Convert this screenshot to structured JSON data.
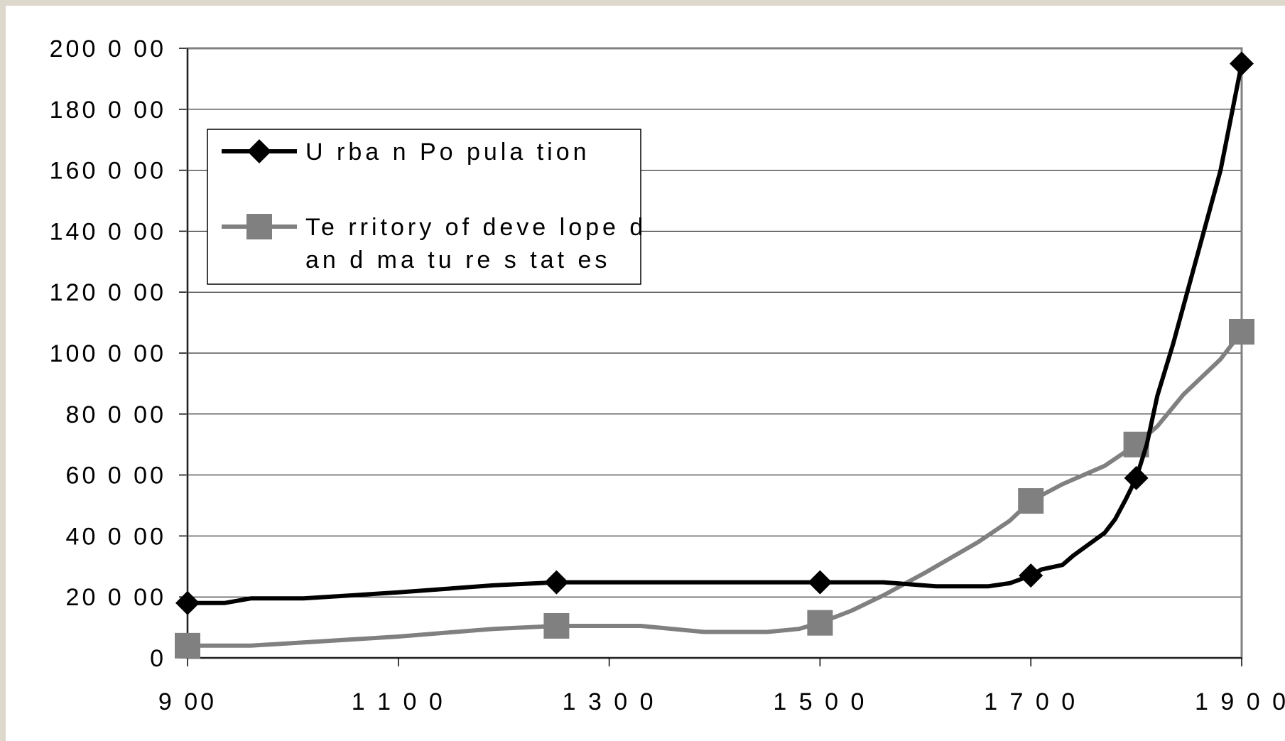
{
  "chart_data": {
    "type": "line",
    "title": "",
    "xlabel": "",
    "ylabel": "",
    "xlim": [
      900,
      1900
    ],
    "ylim": [
      0,
      200000
    ],
    "x_ticks": [
      900,
      1100,
      1300,
      1500,
      1700,
      1900
    ],
    "x_tick_labels": [
      "9 00",
      "1 1 0 0",
      "1 3 0 0",
      "1 5 0 0",
      "1 7 0 0",
      "1 9 0 0"
    ],
    "y_ticks": [
      0,
      20000,
      40000,
      60000,
      80000,
      100000,
      120000,
      140000,
      160000,
      180000,
      200000
    ],
    "y_tick_labels": [
      "0",
      "20  0 00",
      "40  0 00",
      "60  0 00",
      "80  0 00",
      "100  0 00",
      "120  0 00",
      "140  0 00",
      "160  0 00",
      "180  0 00",
      "200  0 00"
    ],
    "grid": "horizontal",
    "legend_position": "top-left",
    "series": [
      {
        "name": "Urban Population",
        "name_lines": [
          "U rba n  Po pula tion"
        ],
        "color": "#000000",
        "marker": "diamond",
        "points": [
          [
            900,
            18000
          ],
          [
            935,
            18000
          ],
          [
            960,
            19500
          ],
          [
            1010,
            19500
          ],
          [
            1100,
            21500
          ],
          [
            1190,
            23800
          ],
          [
            1250,
            24800
          ],
          [
            1350,
            24800
          ],
          [
            1500,
            24800
          ],
          [
            1560,
            24800
          ],
          [
            1610,
            23500
          ],
          [
            1660,
            23500
          ],
          [
            1680,
            24500
          ],
          [
            1700,
            27000
          ],
          [
            1710,
            29000
          ],
          [
            1730,
            30500
          ],
          [
            1740,
            33500
          ],
          [
            1760,
            38500
          ],
          [
            1770,
            41000
          ],
          [
            1780,
            45500
          ],
          [
            1790,
            52000
          ],
          [
            1800,
            59000
          ],
          [
            1810,
            70000
          ],
          [
            1820,
            86000
          ],
          [
            1835,
            103000
          ],
          [
            1880,
            160000
          ],
          [
            1900,
            195000
          ]
        ],
        "markers": [
          [
            900,
            18000
          ],
          [
            1250,
            24800
          ],
          [
            1500,
            24800
          ],
          [
            1700,
            27000
          ],
          [
            1800,
            59000
          ],
          [
            1900,
            195000
          ]
        ]
      },
      {
        "name": "Territory of developed and mature states",
        "name_lines": [
          "Te rritory  of  deve lope d",
          "an d  ma tu re  s tat es"
        ],
        "color": "#808080",
        "marker": "square",
        "points": [
          [
            900,
            4000
          ],
          [
            960,
            4000
          ],
          [
            1100,
            7000
          ],
          [
            1190,
            9500
          ],
          [
            1250,
            10500
          ],
          [
            1330,
            10500
          ],
          [
            1390,
            8500
          ],
          [
            1450,
            8500
          ],
          [
            1480,
            9500
          ],
          [
            1500,
            11500
          ],
          [
            1530,
            15500
          ],
          [
            1560,
            20500
          ],
          [
            1600,
            28000
          ],
          [
            1650,
            38000
          ],
          [
            1680,
            45000
          ],
          [
            1700,
            51500
          ],
          [
            1730,
            57000
          ],
          [
            1770,
            63000
          ],
          [
            1800,
            70000
          ],
          [
            1820,
            76000
          ],
          [
            1845,
            86500
          ],
          [
            1880,
            98000
          ],
          [
            1900,
            107000
          ]
        ],
        "markers": [
          [
            900,
            4000
          ],
          [
            1250,
            10500
          ],
          [
            1500,
            11500
          ],
          [
            1700,
            51500
          ],
          [
            1800,
            70000
          ],
          [
            1900,
            107000
          ]
        ]
      }
    ]
  }
}
